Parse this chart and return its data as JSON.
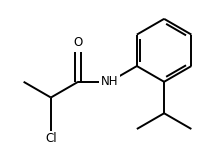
{
  "bg_color": "#ffffff",
  "bond_color": "#000000",
  "bond_lw": 1.4,
  "text_color": "#000000",
  "O_label": "O",
  "N_label": "NH",
  "Cl_label": "Cl",
  "font_size": 8.5
}
